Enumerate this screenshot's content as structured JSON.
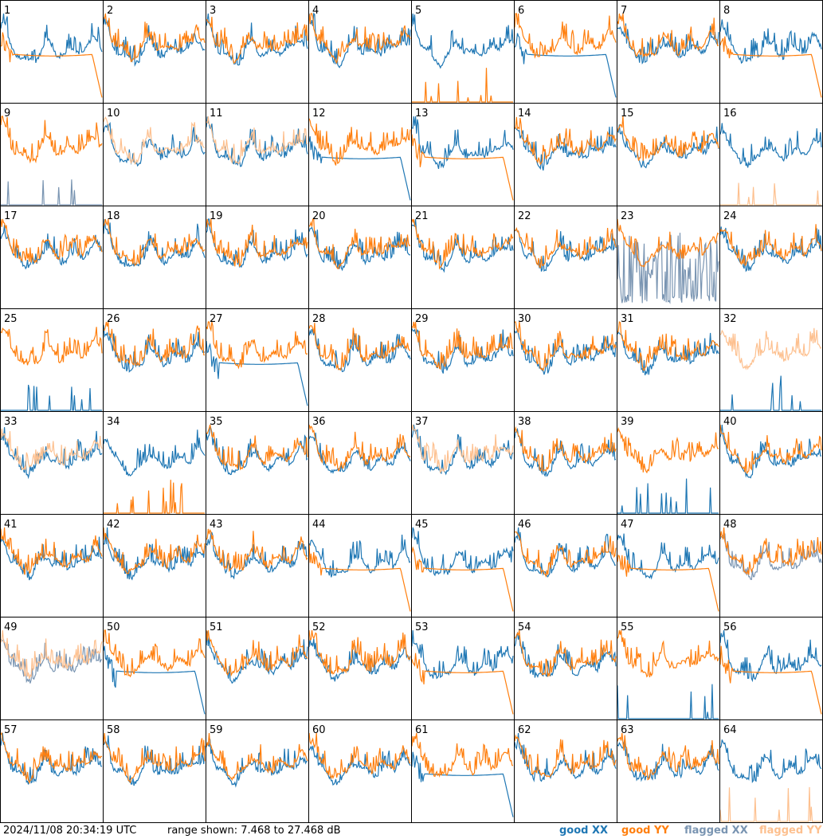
{
  "footer": {
    "timestamp": "2024/11/08 20:34:19 UTC",
    "range_label": "range shown: 7.468 to 27.468 dB"
  },
  "legend": [
    {
      "label": "good XX",
      "color": "#1f77b4"
    },
    {
      "label": "good YY",
      "color": "#ff7f0e"
    },
    {
      "label": "flagged XX",
      "color": "#7a95b2"
    },
    {
      "label": "flagged YY",
      "color": "#fdc08f"
    }
  ],
  "chart_data": {
    "type": "line",
    "grid": "8x8 small multiples",
    "y_units": "dB",
    "ylim": [
      7.468,
      27.468
    ],
    "panel_labels": [
      "1",
      "2",
      "3",
      "4",
      "5",
      "6",
      "7",
      "8",
      "9",
      "10",
      "11",
      "12",
      "13",
      "14",
      "15",
      "16",
      "17",
      "18",
      "19",
      "20",
      "21",
      "22",
      "23",
      "24",
      "25",
      "26",
      "27",
      "28",
      "29",
      "30",
      "31",
      "32",
      "33",
      "34",
      "35",
      "36",
      "37",
      "38",
      "39",
      "40",
      "41",
      "42",
      "43",
      "44",
      "45",
      "46",
      "47",
      "48",
      "49",
      "50",
      "51",
      "52",
      "53",
      "54",
      "55",
      "56",
      "57",
      "58",
      "59",
      "60",
      "61",
      "62",
      "63",
      "64"
    ],
    "panels": {
      "1": {
        "XX": "good",
        "YY": "good",
        "YY_shape": "plateau"
      },
      "5": {
        "XX": "good",
        "YY": "good",
        "YY_shape": "spikes"
      },
      "6": {
        "XX": "good",
        "YY": "good",
        "XX_shape": "plateau"
      },
      "8": {
        "XX": "good",
        "YY": "good",
        "YY_shape": "plateau"
      },
      "9": {
        "XX": "flagged",
        "YY": "good",
        "XX_shape": "spikes"
      },
      "10": {
        "XX": "good",
        "YY": "flagged"
      },
      "11": {
        "XX": "good",
        "YY": "flagged"
      },
      "12": {
        "XX": "good",
        "YY": "good",
        "XX_shape": "plateau"
      },
      "13": {
        "XX": "good",
        "YY": "good",
        "YY_shape": "plateau"
      },
      "16": {
        "XX": "good",
        "YY": "flagged",
        "YY_shape": "spikes"
      },
      "23": {
        "XX": "flagged",
        "YY": "good",
        "XX_shape": "noisy_low"
      },
      "25": {
        "XX": "good",
        "YY": "good",
        "XX_shape": "spikes"
      },
      "27": {
        "XX": "good",
        "YY": "good",
        "XX_shape": "plateau"
      },
      "32": {
        "XX": "good",
        "YY": "flagged",
        "XX_shape": "spikes"
      },
      "33": {
        "XX": "good",
        "YY": "flagged"
      },
      "34": {
        "XX": "good",
        "YY": "good",
        "YY_shape": "spikes"
      },
      "37": {
        "XX": "good",
        "YY": "flagged"
      },
      "39": {
        "XX": "good",
        "YY": "good",
        "XX_shape": "spikes"
      },
      "44": {
        "XX": "good",
        "YY": "good",
        "YY_shape": "plateau"
      },
      "45": {
        "XX": "good",
        "YY": "good",
        "YY_shape": "plateau"
      },
      "47": {
        "XX": "good",
        "YY": "good",
        "YY_shape": "plateau"
      },
      "48": {
        "XX": "flagged",
        "YY": "good"
      },
      "49": {
        "XX": "flagged",
        "YY": "flagged"
      },
      "50": {
        "XX": "good",
        "YY": "good",
        "XX_shape": "plateau"
      },
      "53": {
        "XX": "good",
        "YY": "good",
        "YY_shape": "plateau"
      },
      "55": {
        "XX": "good",
        "YY": "good",
        "XX_shape": "spikes"
      },
      "56": {
        "XX": "good",
        "YY": "good",
        "YY_shape": "plateau"
      },
      "61": {
        "XX": "good",
        "YY": "good",
        "XX_shape": "plateau"
      },
      "64": {
        "XX": "good",
        "YY": "flagged",
        "YY_shape": "spikes"
      }
    }
  }
}
